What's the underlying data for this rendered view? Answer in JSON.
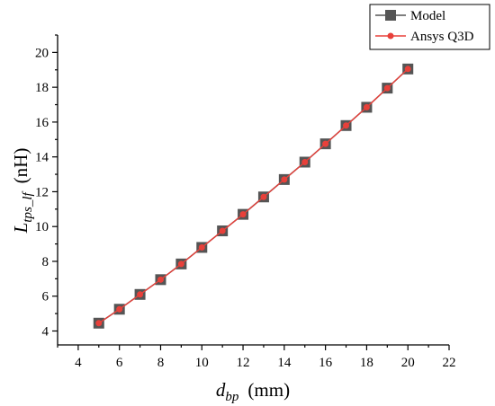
{
  "chart_data": {
    "type": "line",
    "x": [
      5,
      6,
      7,
      8,
      9,
      10,
      11,
      12,
      13,
      14,
      15,
      16,
      17,
      18,
      19,
      20
    ],
    "series": [
      {
        "name": "Model",
        "color": "#555555",
        "marker": "square",
        "values": [
          4.45,
          5.25,
          6.1,
          6.95,
          7.85,
          8.8,
          9.75,
          10.7,
          11.7,
          12.7,
          13.7,
          14.75,
          15.8,
          16.85,
          17.95,
          19.05
        ]
      },
      {
        "name": "Ansys Q3D",
        "color": "#e8403a",
        "marker": "circle",
        "values": [
          4.45,
          5.25,
          6.1,
          6.95,
          7.85,
          8.8,
          9.75,
          10.7,
          11.7,
          12.7,
          13.7,
          14.75,
          15.8,
          16.85,
          17.95,
          19.05
        ]
      }
    ],
    "xlabel": {
      "main": "d",
      "sub": "bp",
      "unit": "(mm)"
    },
    "ylabel": {
      "main": "L",
      "sub": "tps_lf",
      "unit": "(nH)"
    },
    "xlim": [
      3,
      22
    ],
    "ylim": [
      3.2,
      21
    ],
    "xticks": [
      4,
      6,
      8,
      10,
      12,
      14,
      16,
      18,
      20,
      22
    ],
    "yticks": [
      4,
      6,
      8,
      10,
      12,
      14,
      16,
      18,
      20
    ],
    "grid": false,
    "legend_position": "top-right"
  }
}
